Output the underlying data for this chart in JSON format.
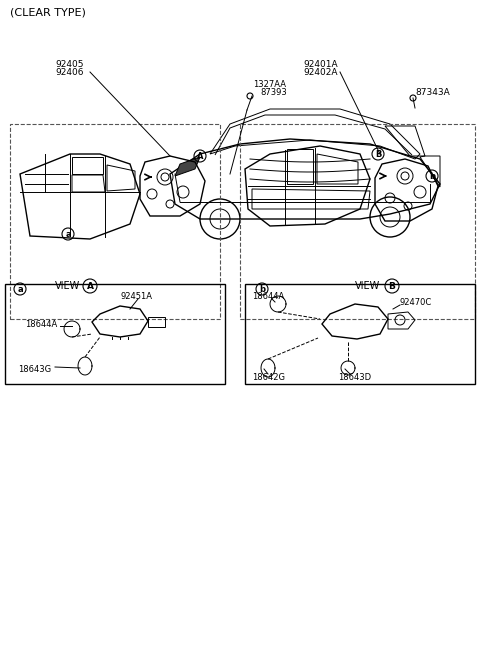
{
  "title_text": "(CLEAR TYPE)",
  "bg_color": "#ffffff",
  "line_color": "#000000",
  "light_gray": "#cccccc",
  "mid_gray": "#888888",
  "part_labels": {
    "1327AA_87393": [
      1327,
      "AA\n87393"
    ],
    "92405_92406": [
      "92405",
      "92406"
    ],
    "92401A_92402A": [
      "92401A",
      "92402A"
    ],
    "87343A": "87343A",
    "92451A": "92451A",
    "18644A_left": "18644A",
    "18643G": "18643G",
    "18644A_right": "18644A",
    "92470C": "92470C",
    "18642G": "18642G",
    "18643D": "18643D"
  },
  "circle_labels": {
    "A_main": "A",
    "B_main": "B",
    "a_view": "a",
    "b_view": "b",
    "a_box": "a",
    "b_box": "b"
  },
  "view_labels": [
    "VIEW  A",
    "VIEW  B"
  ]
}
